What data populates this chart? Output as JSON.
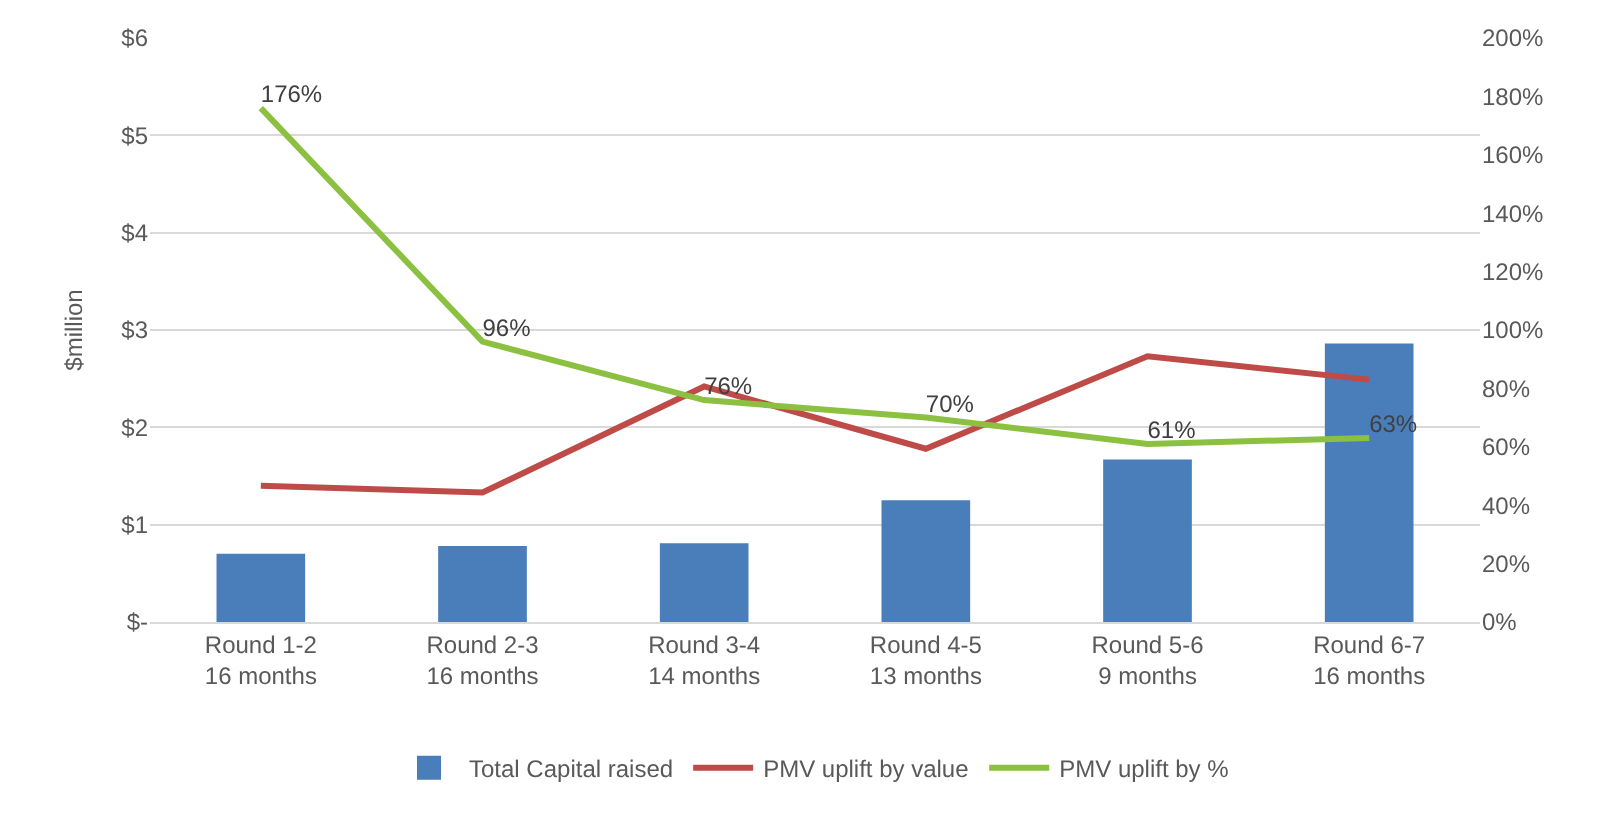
{
  "chart_data": {
    "type": "bar",
    "ylabel": "$million",
    "categories": [
      "Round 1-2\n16 months",
      "Round 2-3\n16 months",
      "Round 3-4\n14 months",
      "Round 4-5\n13 months",
      "Round 5-6\n9 months",
      "Round 6-7\n16 months"
    ],
    "series": [
      {
        "name": "Total Capital raised",
        "color": "#4a7ebb",
        "values": [
          0.7,
          0.78,
          0.81,
          1.25,
          1.67,
          2.86
        ]
      },
      {
        "name": "PMV uplift by value",
        "type": "line",
        "color": "#be4b48",
        "values": [
          1.4,
          1.33,
          2.42,
          1.78,
          2.73,
          2.49
        ]
      },
      {
        "name": "PMV uplift by %",
        "type": "line",
        "axis": "y2",
        "color": "#8cc040",
        "values": [
          176,
          96,
          76,
          70,
          61,
          63
        ],
        "value_labels": [
          "176%",
          "96%",
          "76%",
          "70%",
          "61%",
          "63%"
        ]
      }
    ],
    "ylim": [
      0,
      6
    ],
    "yticks": [
      {
        "value": 0,
        "label": "$-"
      },
      {
        "value": 1,
        "label": "$1"
      },
      {
        "value": 2,
        "label": "$2"
      },
      {
        "value": 3,
        "label": "$3"
      },
      {
        "value": 4,
        "label": "$4"
      },
      {
        "value": 5,
        "label": "$5"
      },
      {
        "value": 6,
        "label": "$6"
      }
    ],
    "y2lim": [
      0,
      200
    ],
    "y2ticks": [
      {
        "value": 0,
        "label": "0%"
      },
      {
        "value": 20,
        "label": "20%"
      },
      {
        "value": 40,
        "label": "40%"
      },
      {
        "value": 60,
        "label": "60%"
      },
      {
        "value": 80,
        "label": "80%"
      },
      {
        "value": 100,
        "label": "100%"
      },
      {
        "value": 120,
        "label": "120%"
      },
      {
        "value": 140,
        "label": "140%"
      },
      {
        "value": 160,
        "label": "160%"
      },
      {
        "value": 180,
        "label": "180%"
      },
      {
        "value": 200,
        "label": "200%"
      }
    ],
    "grid": "y",
    "legend": "bottom",
    "marker": "none"
  }
}
